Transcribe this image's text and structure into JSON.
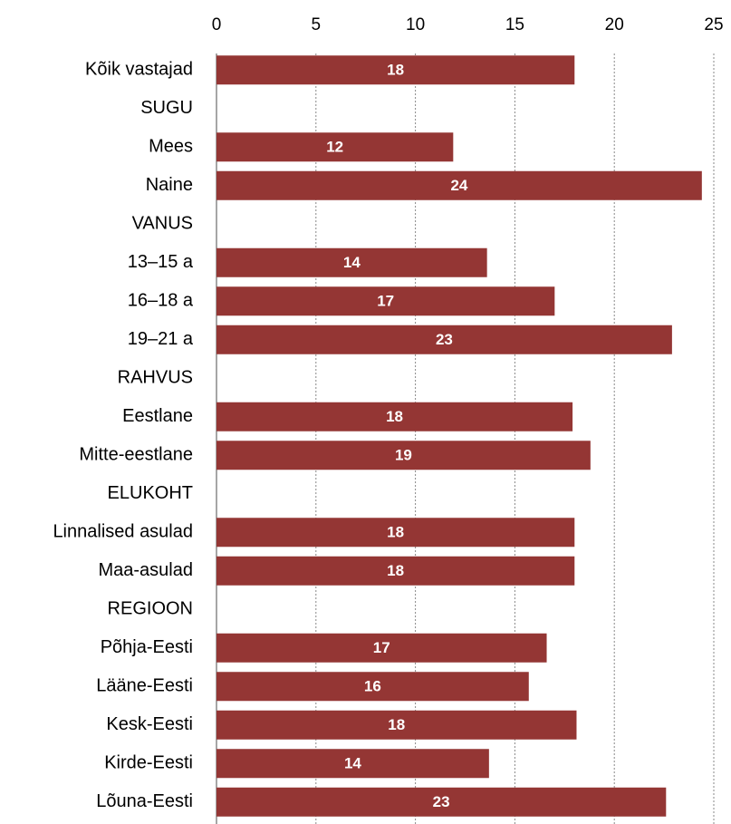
{
  "chart_data": {
    "type": "hbar",
    "categories": [
      "Kõik vastajad",
      "SUGU",
      "Mees",
      "Naine",
      "VANUS",
      "13–15 a",
      "16–18 a",
      "19–21 a",
      "RAHVUS",
      "Eestlane",
      "Mitte-eestlane",
      "ELUKOHT",
      "Linnalised asulad",
      "Maa-asulad",
      "REGIOON",
      "Põhja-Eesti",
      "Lääne-Eesti",
      "Kesk-Eesti",
      "Kirde-Eesti",
      "Lõuna-Eesti"
    ],
    "values": [
      18.0,
      null,
      11.9,
      24.4,
      null,
      13.6,
      17.0,
      22.9,
      null,
      17.9,
      18.8,
      null,
      18.0,
      18.0,
      null,
      16.6,
      15.7,
      18.1,
      13.7,
      22.6
    ],
    "value_labels": [
      "18",
      null,
      "12",
      "24",
      null,
      "14",
      "17",
      "23",
      null,
      "18",
      "19",
      null,
      "18",
      "18",
      null,
      "17",
      "16",
      "18",
      "14",
      "23"
    ],
    "color": "#943634",
    "xlim": [
      0,
      25
    ],
    "xticks": [
      0,
      5,
      10,
      15,
      20,
      25
    ],
    "grid": true
  }
}
